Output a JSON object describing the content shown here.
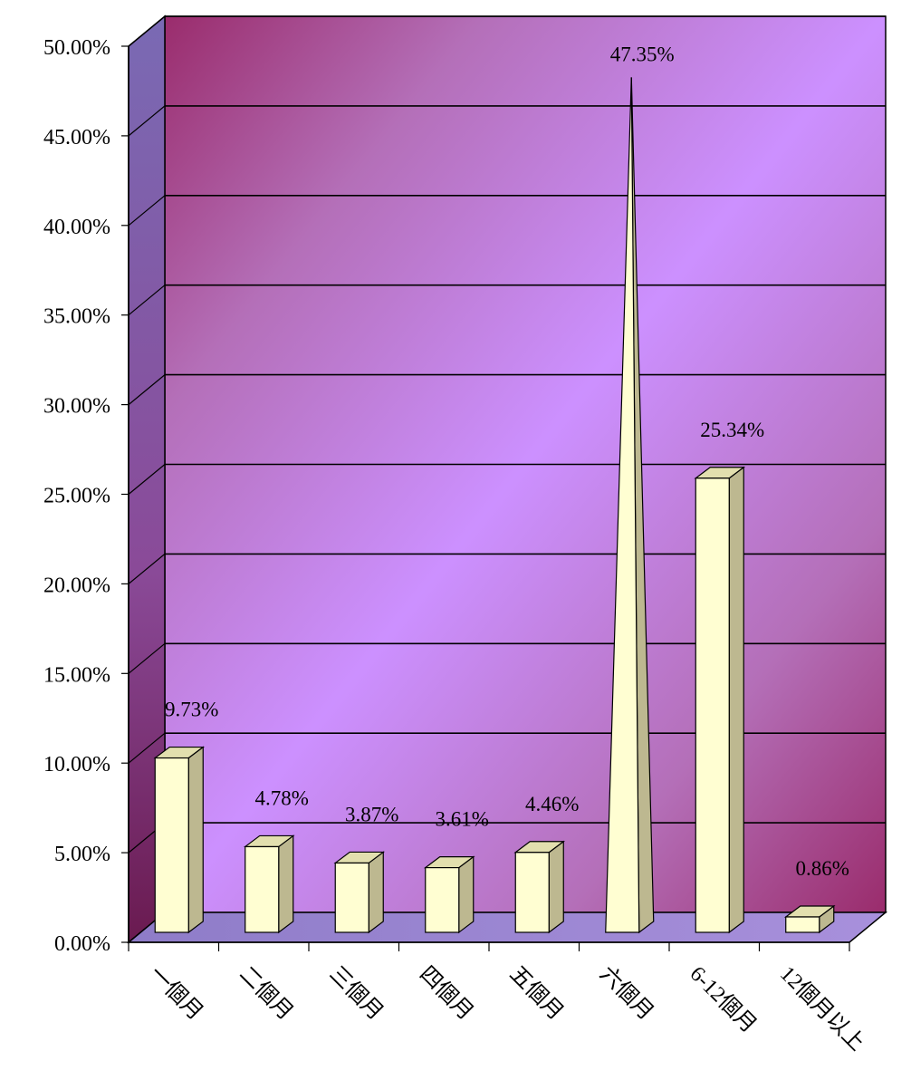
{
  "chart_data": {
    "type": "bar",
    "title": "",
    "xlabel": "",
    "ylabel": "",
    "categories": [
      "一個月",
      "二個月",
      "三個月",
      "四個月",
      "五個月",
      "六個月",
      "6-12個月",
      "12個月以上"
    ],
    "series": [
      {
        "values": [
          9.73,
          4.78,
          3.87,
          3.61,
          4.46,
          47.35,
          25.34,
          0.86
        ],
        "value_labels": [
          "9.73%",
          "4.78%",
          "3.87%",
          "3.61%",
          "4.46%",
          "47.35%",
          "25.34%",
          "0.86%"
        ]
      }
    ],
    "mark_shapes": [
      "column",
      "column",
      "column",
      "column",
      "column",
      "pyramid",
      "column",
      "column"
    ],
    "ylim": [
      0,
      50
    ],
    "yticks": [
      0,
      5,
      10,
      15,
      20,
      25,
      30,
      35,
      40,
      45,
      50
    ],
    "ytick_labels": [
      "0.00%",
      "5.00%",
      "10.00%",
      "15.00%",
      "20.00%",
      "25.00%",
      "30.00%",
      "35.00%",
      "40.00%",
      "45.00%",
      "50.00%"
    ],
    "grid": true,
    "legend": "none",
    "style": "3d",
    "colors": {
      "bar_front": "#fffed2",
      "bar_side": "#bdb890",
      "bar_top": "#e2dfae",
      "wall_purple": "#cc90ff",
      "wall_magenta": "#9a2c6c",
      "side_wall": "#6c5aa8",
      "floor": "#9a84d0"
    }
  }
}
